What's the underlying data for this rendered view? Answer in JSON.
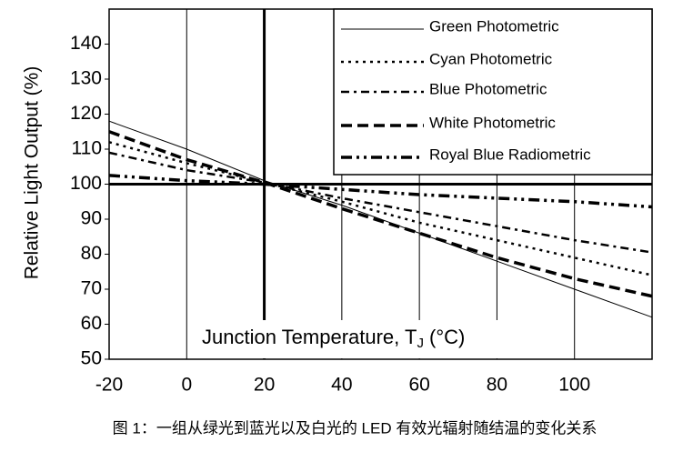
{
  "chart_data": {
    "type": "line",
    "ylabel": "Relative Light Output (%)",
    "xlabel": "Junction Temperature, T",
    "xlabel_sub": "J",
    "xlabel_end": " (°C)",
    "caption": "图 1：一组从绿光到蓝光以及白光的 LED 有效光辐射随结温的变化关系",
    "x": [
      -20,
      0,
      20,
      40,
      60,
      80,
      100,
      120
    ],
    "series": [
      {
        "name": "Green Photometric",
        "color": "#000000",
        "dash": "",
        "width": 1,
        "values": [
          118,
          110,
          101,
          94,
          86,
          78,
          70,
          62
        ]
      },
      {
        "name": "Cyan Photometric",
        "color": "#000000",
        "dash": "3 5",
        "width": 2.5,
        "values": [
          112,
          106,
          100.5,
          95,
          89,
          84,
          79,
          74
        ]
      },
      {
        "name": "Blue Photometric",
        "color": "#000000",
        "dash": "9 5 3 5",
        "width": 2.5,
        "values": [
          109,
          104,
          100.5,
          96,
          92,
          88,
          84,
          80.5
        ]
      },
      {
        "name": "White Photometric",
        "color": "#000000",
        "dash": "12 6",
        "width": 3.5,
        "values": [
          115,
          107,
          100.5,
          93,
          86,
          79,
          73,
          68
        ]
      },
      {
        "name": "Royal Blue Radiometric",
        "color": "#000000",
        "dash": "12 5 3 5 3 5",
        "width": 3.5,
        "values": [
          102.5,
          101,
          100,
          98.5,
          97,
          96,
          95,
          93.5
        ]
      }
    ],
    "xlim": [
      -20,
      120
    ],
    "ylim": [
      50,
      150
    ],
    "xticks": [
      -20,
      0,
      20,
      40,
      60,
      80,
      100
    ],
    "yticks": [
      50,
      60,
      70,
      80,
      90,
      100,
      110,
      120,
      130,
      140
    ],
    "reference_lines": {
      "x": 20,
      "y": 100
    },
    "grid": true
  }
}
